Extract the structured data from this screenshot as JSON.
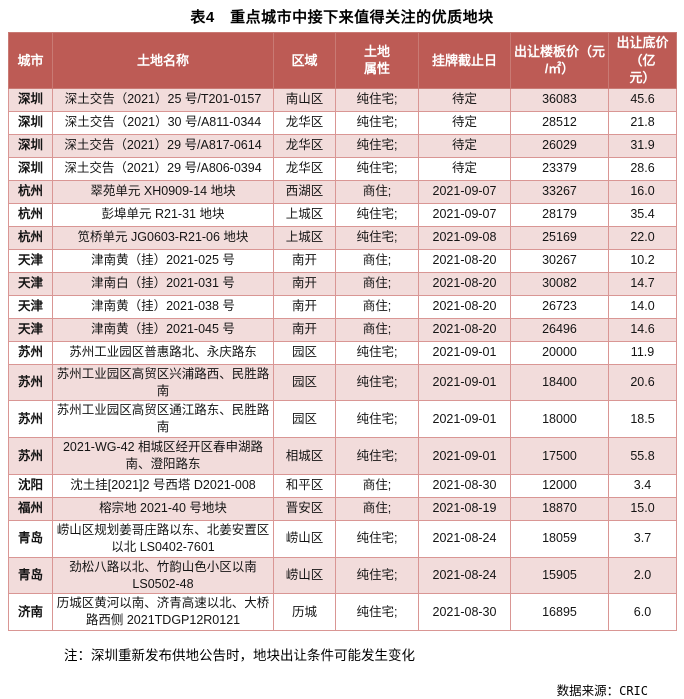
{
  "title": "表4　重点城市中接下来值得关注的优质地块",
  "table": {
    "columns": [
      {
        "key": "city",
        "label": "城市"
      },
      {
        "key": "name",
        "label": "土地名称"
      },
      {
        "key": "region",
        "label": "区域"
      },
      {
        "key": "attr",
        "label": "土地\n属性"
      },
      {
        "key": "deadline",
        "label": "挂牌截止日"
      },
      {
        "key": "floor_price",
        "label": "出让楼板价（元\n/㎡）"
      },
      {
        "key": "base_price",
        "label": "出让底价（亿\n元）"
      }
    ],
    "rows": [
      {
        "city": "深圳",
        "name": "深土交告（2021）25 号/T201-0157",
        "region": "南山区",
        "attr": "纯住宅;",
        "deadline": "待定",
        "floor_price": "36083",
        "base_price": "45.6"
      },
      {
        "city": "深圳",
        "name": "深土交告（2021）30 号/A811-0344",
        "region": "龙华区",
        "attr": "纯住宅;",
        "deadline": "待定",
        "floor_price": "28512",
        "base_price": "21.8"
      },
      {
        "city": "深圳",
        "name": "深土交告（2021）29 号/A817-0614",
        "region": "龙华区",
        "attr": "纯住宅;",
        "deadline": "待定",
        "floor_price": "26029",
        "base_price": "31.9"
      },
      {
        "city": "深圳",
        "name": "深土交告（2021）29 号/A806-0394",
        "region": "龙华区",
        "attr": "纯住宅;",
        "deadline": "待定",
        "floor_price": "23379",
        "base_price": "28.6"
      },
      {
        "city": "杭州",
        "name": "翠苑单元 XH0909-14 地块",
        "region": "西湖区",
        "attr": "商住;",
        "deadline": "2021-09-07",
        "floor_price": "33267",
        "base_price": "16.0"
      },
      {
        "city": "杭州",
        "name": "彭埠单元 R21-31 地块",
        "region": "上城区",
        "attr": "纯住宅;",
        "deadline": "2021-09-07",
        "floor_price": "28179",
        "base_price": "35.4"
      },
      {
        "city": "杭州",
        "name": "笕桥单元 JG0603-R21-06 地块",
        "region": "上城区",
        "attr": "纯住宅;",
        "deadline": "2021-09-08",
        "floor_price": "25169",
        "base_price": "22.0"
      },
      {
        "city": "天津",
        "name": "津南黄（挂）2021-025 号",
        "region": "南开",
        "attr": "商住;",
        "deadline": "2021-08-20",
        "floor_price": "30267",
        "base_price": "10.2"
      },
      {
        "city": "天津",
        "name": "津南白（挂）2021-031 号",
        "region": "南开",
        "attr": "商住;",
        "deadline": "2021-08-20",
        "floor_price": "30082",
        "base_price": "14.7"
      },
      {
        "city": "天津",
        "name": "津南黄（挂）2021-038 号",
        "region": "南开",
        "attr": "商住;",
        "deadline": "2021-08-20",
        "floor_price": "26723",
        "base_price": "14.0"
      },
      {
        "city": "天津",
        "name": "津南黄（挂）2021-045 号",
        "region": "南开",
        "attr": "商住;",
        "deadline": "2021-08-20",
        "floor_price": "26496",
        "base_price": "14.6"
      },
      {
        "city": "苏州",
        "name": "苏州工业园区普惠路北、永庆路东",
        "region": "园区",
        "attr": "纯住宅;",
        "deadline": "2021-09-01",
        "floor_price": "20000",
        "base_price": "11.9"
      },
      {
        "city": "苏州",
        "name": "苏州工业园区高贸区兴浦路西、民胜路南",
        "region": "园区",
        "attr": "纯住宅;",
        "deadline": "2021-09-01",
        "floor_price": "18400",
        "base_price": "20.6"
      },
      {
        "city": "苏州",
        "name": "苏州工业园区高贸区通江路东、民胜路南",
        "region": "园区",
        "attr": "纯住宅;",
        "deadline": "2021-09-01",
        "floor_price": "18000",
        "base_price": "18.5"
      },
      {
        "city": "苏州",
        "name": "2021-WG-42 相城区经开区春申湖路南、澄阳路东",
        "region": "相城区",
        "attr": "纯住宅;",
        "deadline": "2021-09-01",
        "floor_price": "17500",
        "base_price": "55.8"
      },
      {
        "city": "沈阳",
        "name": "沈土挂[2021]2 号西塔 D2021-008",
        "region": "和平区",
        "attr": "商住;",
        "deadline": "2021-08-30",
        "floor_price": "12000",
        "base_price": "3.4"
      },
      {
        "city": "福州",
        "name": "榕宗地 2021-40 号地块",
        "region": "晋安区",
        "attr": "商住;",
        "deadline": "2021-08-19",
        "floor_price": "18870",
        "base_price": "15.0"
      },
      {
        "city": "青岛",
        "name": "崂山区规划姜哥庄路以东、北姜安置区以北 LS0402-7601",
        "region": "崂山区",
        "attr": "纯住宅;",
        "deadline": "2021-08-24",
        "floor_price": "18059",
        "base_price": "3.7"
      },
      {
        "city": "青岛",
        "name": "劲松八路以北、竹韵山色小区以南 LS0502-48",
        "region": "崂山区",
        "attr": "纯住宅;",
        "deadline": "2021-08-24",
        "floor_price": "15905",
        "base_price": "2.0"
      },
      {
        "city": "济南",
        "name": "历城区黄河以南、济青高速以北、大桥路西侧 2021TDGP12R0121",
        "region": "历城",
        "attr": "纯住宅;",
        "deadline": "2021-08-30",
        "floor_price": "16895",
        "base_price": "6.0"
      }
    ]
  },
  "note": "注：深圳重新发布供地公告时，地块出让条件可能发生变化",
  "source": {
    "label": "数据来源：",
    "value": "CRIC"
  },
  "colors": {
    "header_bg": "#BD5B55",
    "header_text": "#FFFFFF",
    "row_alt": "#F2DCDB",
    "border": "#D99694"
  }
}
